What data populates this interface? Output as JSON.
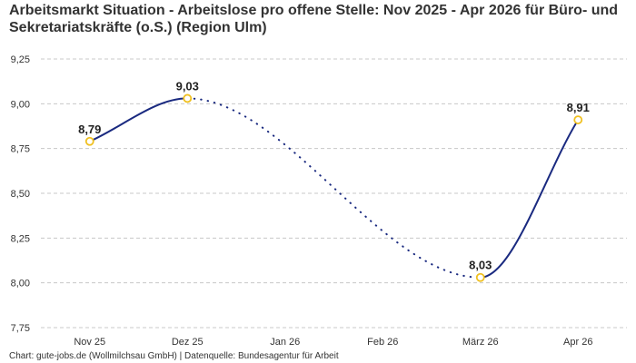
{
  "chart_data": {
    "type": "line",
    "title": "Arbeitsmarkt Situation - Arbeitslose pro offene Stelle: Nov 2025 - Apr 2026 für Büro- und Sekretariatskräfte (o.S.) (Region Ulm)",
    "categories": [
      "Nov 25",
      "Dez 25",
      "Jan 26",
      "Feb 26",
      "März 26",
      "Apr 26"
    ],
    "series": [
      {
        "values": [
          8.79,
          9.03,
          null,
          null,
          8.03,
          8.91
        ],
        "data_labels": [
          "8,79",
          "9,03",
          "",
          "",
          "8,03",
          "8,91"
        ]
      }
    ],
    "missing_data_style": "dotted",
    "y_ticks": [
      "7,75",
      "8,00",
      "8,25",
      "8,50",
      "8,75",
      "9,00",
      "9,25"
    ],
    "ylim": [
      7.75,
      9.25
    ],
    "grid": "horizontal dashed",
    "colors": {
      "line": "#1a2a80",
      "marker_stroke": "#f0c020",
      "marker_fill": "#ffffff"
    }
  },
  "footer": "Chart: gute-jobs.de (Wollmilchsau GmbH) | Datenquelle: Bundesagentur für Arbeit"
}
